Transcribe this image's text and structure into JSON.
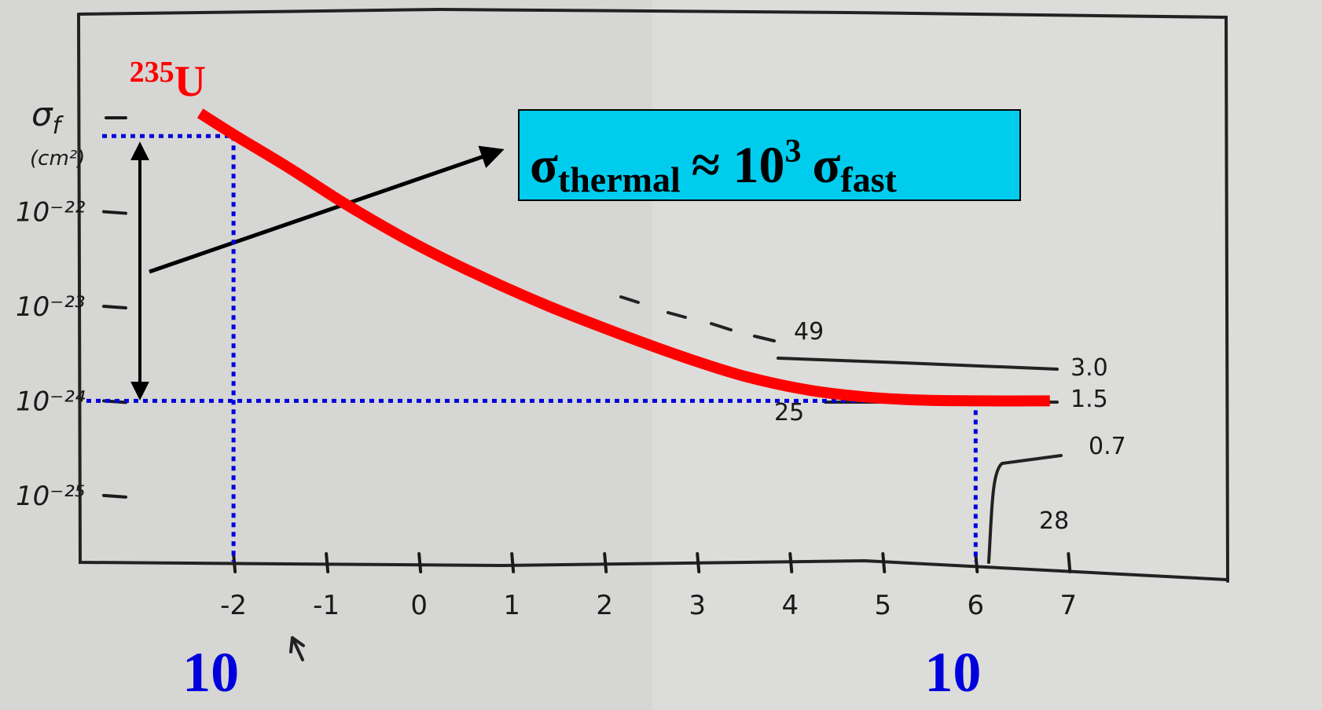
{
  "chart_data": {
    "type": "line",
    "y_label": {
      "symbol": "σ",
      "subscript": "f",
      "unit": "(cm²)"
    },
    "x": [
      -2.36,
      -1.97,
      -1.4,
      -0.79,
      -0.1,
      0.57,
      1.4,
      2.26,
      2.9,
      3.53,
      4.2,
      4.81,
      5.4,
      6.08,
      6.8
    ],
    "series": [
      {
        "name": "U",
        "mass_number": "235",
        "color": "#ff0000",
        "values": [
          1.1e-21,
          6.3e-22,
          2.9e-22,
          1.2e-22,
          4.9e-23,
          2.3e-23,
          1e-23,
          4.7e-24,
          2.8e-24,
          1.8e-24,
          1.3e-24,
          1.1e-24,
          1.02e-24,
          1e-24,
          1e-24
        ]
      }
    ],
    "xlim": [
      -3.67,
      8.7
    ],
    "xticks": [
      -2,
      -1,
      0,
      1,
      2,
      3,
      4,
      5,
      6,
      7
    ],
    "ylim": [
      2e-26,
      1.3e-20
    ],
    "log_y": true,
    "yticks": [
      {
        "value": 1e-22,
        "label": "10⁻²²"
      },
      {
        "value": 1e-23,
        "label": "10⁻²³"
      },
      {
        "value": 1e-24,
        "label": "10⁻²⁴"
      },
      {
        "value": 1e-25,
        "label": "10⁻²⁵"
      }
    ],
    "reference_lines": {
      "color": "#0000dd",
      "x": [
        -2,
        6
      ],
      "y": [
        6.3e-22,
        1e-24
      ]
    },
    "energy_labels": [
      "10",
      "10"
    ],
    "equation": {
      "sigma1": "σ",
      "sub1": "thermal",
      "approx": "≈ 10",
      "exp": "3",
      "sigma2": "σ",
      "sub2": "fast",
      "fill": "#00ccee"
    },
    "annotations": [
      "49",
      "3.0",
      "1.5",
      "25",
      "0.7",
      "28"
    ]
  }
}
